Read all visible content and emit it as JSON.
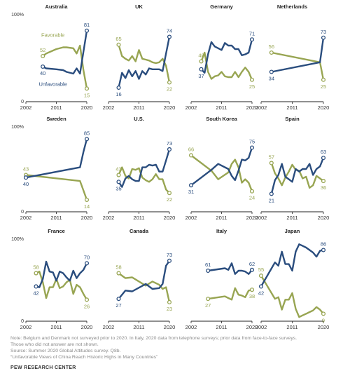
{
  "colors": {
    "favorable": "#98a552",
    "unfavorable": "#2a4d7e",
    "axis": "#222222"
  },
  "y_axis": {
    "top_label": "100%",
    "bottom_label": "0"
  },
  "chart_data": [
    {
      "type": "line",
      "title": "Australia",
      "xticks": [
        "2002",
        "2011",
        "2020"
      ],
      "xlim": [
        2002,
        2020
      ],
      "ylim": [
        0,
        100
      ],
      "series_labels": {
        "favorable": "Favorable",
        "unfavorable": "Unfavorable"
      },
      "series": [
        {
          "name": "Favorable",
          "x": [
            2007,
            2008,
            2011,
            2013,
            2014,
            2016,
            2017,
            2018,
            2019,
            2020
          ],
          "values": [
            52,
            55,
            60,
            62,
            62,
            61,
            55,
            64,
            36,
            15
          ]
        },
        {
          "name": "Unfavorable",
          "x": [
            2007,
            2008,
            2011,
            2013,
            2014,
            2016,
            2017,
            2018,
            2019,
            2020
          ],
          "values": [
            40,
            38,
            37,
            36,
            34,
            32,
            38,
            32,
            57,
            81
          ]
        }
      ],
      "end_labels": {
        "favorable": {
          "start": "52",
          "end": "15"
        },
        "unfavorable": {
          "start": "40",
          "end": "81"
        }
      }
    },
    {
      "type": "line",
      "title": "UK",
      "xticks": [
        "2002",
        "2011",
        "2020"
      ],
      "xlim": [
        2002,
        2020
      ],
      "ylim": [
        0,
        100
      ],
      "series": [
        {
          "name": "Favorable",
          "x": [
            2005,
            2006,
            2007,
            2008,
            2009,
            2010,
            2011,
            2012,
            2013,
            2014,
            2015,
            2016,
            2017,
            2018,
            2019,
            2020
          ],
          "values": [
            65,
            52,
            49,
            47,
            52,
            46,
            59,
            49,
            48,
            47,
            45,
            44,
            45,
            49,
            41,
            22
          ]
        },
        {
          "name": "Unfavorable",
          "x": [
            2005,
            2006,
            2007,
            2008,
            2009,
            2010,
            2011,
            2012,
            2013,
            2014,
            2015,
            2016,
            2017,
            2018,
            2019,
            2020
          ],
          "values": [
            16,
            33,
            27,
            36,
            29,
            35,
            26,
            35,
            31,
            38,
            37,
            37,
            37,
            35,
            55,
            74
          ]
        }
      ],
      "end_labels": {
        "favorable": {
          "start": "65",
          "end": "22"
        },
        "unfavorable": {
          "start": "16",
          "end": "74"
        }
      }
    },
    {
      "type": "line",
      "title": "Germany",
      "xticks": [
        "2002",
        "2011",
        "2020"
      ],
      "xlim": [
        2002,
        2020
      ],
      "ylim": [
        0,
        100
      ],
      "series": [
        {
          "name": "Favorable",
          "x": [
            2005,
            2006,
            2007,
            2008,
            2009,
            2010,
            2011,
            2012,
            2013,
            2014,
            2015,
            2016,
            2017,
            2018,
            2019,
            2020
          ],
          "values": [
            46,
            56,
            34,
            26,
            29,
            30,
            34,
            29,
            28,
            28,
            34,
            28,
            34,
            39,
            34,
            25
          ]
        },
        {
          "name": "Unfavorable",
          "x": [
            2005,
            2006,
            2007,
            2008,
            2009,
            2010,
            2011,
            2012,
            2013,
            2014,
            2015,
            2016,
            2017,
            2018,
            2019,
            2020
          ],
          "values": [
            37,
            33,
            54,
            68,
            63,
            61,
            59,
            67,
            64,
            64,
            60,
            60,
            53,
            54,
            56,
            71
          ]
        }
      ],
      "end_labels": {
        "favorable": {
          "start": "46",
          "end": "25"
        },
        "unfavorable": {
          "start": "37",
          "end": "71"
        }
      }
    },
    {
      "type": "line",
      "title": "Netherlands",
      "xticks": [
        "2002",
        "2011",
        "2020"
      ],
      "xlim": [
        2002,
        2020
      ],
      "ylim": [
        0,
        100
      ],
      "series": [
        {
          "name": "Favorable",
          "x": [
            2005,
            2019,
            2020
          ],
          "values": [
            56,
            45,
            25
          ]
        },
        {
          "name": "Unfavorable",
          "x": [
            2005,
            2019,
            2020
          ],
          "values": [
            34,
            45,
            73
          ]
        }
      ],
      "end_labels": {
        "favorable": {
          "start": "56",
          "end": "25"
        },
        "unfavorable": {
          "start": "34",
          "end": "73"
        }
      }
    },
    {
      "type": "line",
      "title": "Sweden",
      "xticks": [
        "2002",
        "2011",
        "2020"
      ],
      "xlim": [
        2002,
        2020
      ],
      "ylim": [
        0,
        100
      ],
      "series": [
        {
          "name": "Favorable",
          "x": [
            2002,
            2018,
            2019,
            2020
          ],
          "values": [
            43,
            36,
            25,
            14
          ]
        },
        {
          "name": "Unfavorable",
          "x": [
            2002,
            2018,
            2019,
            2020
          ],
          "values": [
            40,
            52,
            70,
            85
          ]
        }
      ],
      "end_labels": {
        "favorable": {
          "start": "43",
          "end": "14"
        },
        "unfavorable": {
          "start": "40",
          "end": "85"
        }
      }
    },
    {
      "type": "line",
      "title": "U.S.",
      "xticks": [
        "2002",
        "2011",
        "2020"
      ],
      "xlim": [
        2002,
        2020
      ],
      "ylim": [
        0,
        100
      ],
      "series": [
        {
          "name": "Favorable",
          "x": [
            2005,
            2006,
            2007,
            2008,
            2009,
            2010,
            2011,
            2012,
            2013,
            2014,
            2015,
            2016,
            2017,
            2018,
            2019,
            2020
          ],
          "values": [
            43,
            52,
            42,
            39,
            50,
            49,
            51,
            40,
            37,
            35,
            38,
            44,
            38,
            38,
            26,
            22
          ]
        },
        {
          "name": "Unfavorable",
          "x": [
            2005,
            2006,
            2007,
            2008,
            2009,
            2010,
            2011,
            2012,
            2013,
            2014,
            2015,
            2016,
            2017,
            2018,
            2019,
            2020
          ],
          "values": [
            35,
            29,
            39,
            42,
            38,
            36,
            36,
            52,
            52,
            55,
            54,
            55,
            47,
            47,
            60,
            73
          ]
        }
      ],
      "end_labels": {
        "favorable": {
          "start": "43",
          "end": "22"
        },
        "unfavorable": {
          "start": "35",
          "end": "73"
        }
      }
    },
    {
      "type": "line",
      "title": "South Korea",
      "xticks": [
        "2002",
        "2011",
        "2020"
      ],
      "xlim": [
        2002,
        2020
      ],
      "ylim": [
        0,
        100
      ],
      "series": [
        {
          "name": "Favorable",
          "x": [
            2002,
            2008,
            2010,
            2013,
            2014,
            2015,
            2016,
            2017,
            2018,
            2019,
            2020
          ],
          "values": [
            66,
            48,
            38,
            46,
            56,
            61,
            52,
            34,
            38,
            34,
            24
          ]
        },
        {
          "name": "Unfavorable",
          "x": [
            2002,
            2008,
            2010,
            2013,
            2014,
            2015,
            2016,
            2017,
            2018,
            2019,
            2020
          ],
          "values": [
            31,
            49,
            56,
            50,
            42,
            37,
            48,
            61,
            60,
            63,
            75
          ]
        }
      ],
      "end_labels": {
        "favorable": {
          "start": "66",
          "end": "24"
        },
        "unfavorable": {
          "start": "31",
          "end": "75"
        }
      }
    },
    {
      "type": "line",
      "title": "Spain",
      "xticks": [
        "2002",
        "2011",
        "2020"
      ],
      "xlim": [
        2002,
        2020
      ],
      "ylim": [
        0,
        100
      ],
      "series": [
        {
          "name": "Favorable",
          "x": [
            2005,
            2006,
            2007,
            2008,
            2009,
            2010,
            2011,
            2012,
            2013,
            2014,
            2015,
            2016,
            2017,
            2018,
            2019,
            2020
          ],
          "values": [
            57,
            45,
            39,
            31,
            40,
            47,
            55,
            49,
            48,
            39,
            41,
            28,
            31,
            42,
            39,
            36
          ]
        },
        {
          "name": "Unfavorable",
          "x": [
            2005,
            2006,
            2007,
            2008,
            2009,
            2010,
            2011,
            2012,
            2013,
            2014,
            2015,
            2016,
            2017,
            2018,
            2019,
            2020
          ],
          "values": [
            21,
            37,
            43,
            56,
            41,
            38,
            35,
            50,
            47,
            50,
            50,
            56,
            43,
            50,
            53,
            63
          ]
        }
      ],
      "end_labels": {
        "favorable": {
          "start": "57",
          "end": "36"
        },
        "unfavorable": {
          "start": "21",
          "end": "63"
        }
      }
    },
    {
      "type": "line",
      "title": "France",
      "xticks": [
        "2002",
        "2011",
        "2020"
      ],
      "xlim": [
        2002,
        2020
      ],
      "ylim": [
        0,
        100
      ],
      "series": [
        {
          "name": "Favorable",
          "x": [
            2005,
            2006,
            2007,
            2008,
            2009,
            2010,
            2011,
            2012,
            2013,
            2014,
            2015,
            2016,
            2017,
            2018,
            2019,
            2020
          ],
          "values": [
            58,
            60,
            47,
            28,
            41,
            41,
            51,
            40,
            42,
            47,
            50,
            33,
            44,
            41,
            33,
            26
          ]
        },
        {
          "name": "Unfavorable",
          "x": [
            2005,
            2006,
            2007,
            2008,
            2009,
            2010,
            2011,
            2012,
            2013,
            2014,
            2015,
            2016,
            2017,
            2018,
            2019,
            2020
          ],
          "values": [
            42,
            41,
            51,
            72,
            60,
            59,
            49,
            60,
            58,
            53,
            49,
            61,
            52,
            58,
            62,
            70
          ]
        }
      ],
      "end_labels": {
        "favorable": {
          "start": "58",
          "end": "26"
        },
        "unfavorable": {
          "start": "42",
          "end": "70"
        }
      }
    },
    {
      "type": "line",
      "title": "Canada",
      "xticks": [
        "2002",
        "2011",
        "2020"
      ],
      "xlim": [
        2002,
        2020
      ],
      "ylim": [
        0,
        100
      ],
      "series": [
        {
          "name": "Favorable",
          "x": [
            2005,
            2007,
            2009,
            2013,
            2015,
            2017,
            2018,
            2019,
            2020
          ],
          "values": [
            58,
            52,
            53,
            43,
            48,
            44,
            39,
            41,
            23
          ]
        },
        {
          "name": "Unfavorable",
          "x": [
            2005,
            2007,
            2009,
            2013,
            2015,
            2017,
            2018,
            2019,
            2020
          ],
          "values": [
            27,
            37,
            36,
            45,
            39,
            40,
            45,
            67,
            73
          ]
        }
      ],
      "end_labels": {
        "favorable": {
          "start": "58",
          "end": "23"
        },
        "unfavorable": {
          "start": "27",
          "end": "73"
        }
      }
    },
    {
      "type": "line",
      "title": "Italy",
      "xticks": [
        "2002",
        "2011",
        "2020"
      ],
      "xlim": [
        2002,
        2020
      ],
      "ylim": [
        0,
        100
      ],
      "series": [
        {
          "name": "Favorable",
          "x": [
            2007,
            2012,
            2013,
            2014,
            2015,
            2016,
            2017,
            2018,
            2019,
            2020
          ],
          "values": [
            27,
            30,
            28,
            26,
            40,
            32,
            31,
            29,
            37,
            38
          ]
        },
        {
          "name": "Unfavorable",
          "x": [
            2007,
            2012,
            2013,
            2014,
            2015,
            2016,
            2017,
            2018,
            2019,
            2020
          ],
          "values": [
            61,
            64,
            62,
            70,
            57,
            61,
            61,
            60,
            57,
            62
          ]
        }
      ],
      "end_labels": {
        "favorable": {
          "start": "27",
          "end": "38"
        },
        "unfavorable": {
          "start": "61",
          "end": "62"
        }
      }
    },
    {
      "type": "line",
      "title": "Japan",
      "xticks": [
        "2002",
        "2011",
        "2020"
      ],
      "xlim": [
        2002,
        2020
      ],
      "ylim": [
        0,
        100
      ],
      "series": [
        {
          "name": "Favorable",
          "x": [
            2002,
            2006,
            2007,
            2008,
            2009,
            2010,
            2011,
            2012,
            2013,
            2014,
            2015,
            2016,
            2017,
            2018,
            2019,
            2020
          ],
          "values": [
            55,
            27,
            29,
            14,
            26,
            26,
            34,
            15,
            5,
            7,
            9,
            11,
            13,
            17,
            14,
            9
          ]
        },
        {
          "name": "Unfavorable",
          "x": [
            2002,
            2006,
            2007,
            2008,
            2009,
            2010,
            2011,
            2012,
            2013,
            2014,
            2015,
            2016,
            2017,
            2018,
            2019,
            2020
          ],
          "values": [
            42,
            71,
            67,
            84,
            69,
            69,
            61,
            84,
            93,
            91,
            89,
            86,
            83,
            78,
            85,
            86
          ]
        }
      ],
      "end_labels": {
        "favorable": {
          "start": "55",
          "end": "9"
        },
        "unfavorable": {
          "start": "42",
          "end": "86"
        }
      }
    }
  ],
  "notes": [
    "Note: Belgium and Denmark not surveyed prior to 2020. In Italy, 2020 data from telephone surveys; prior data from face-to-face surveys.",
    "Those who did not answer are not shown.",
    "Source: Summer 2020 Global Attitudes survey. Q8b.",
    "“Unfavorable Views of China Reach Historic Highs in Many Countries”"
  ],
  "source_label": "PEW RESEARCH CENTER"
}
